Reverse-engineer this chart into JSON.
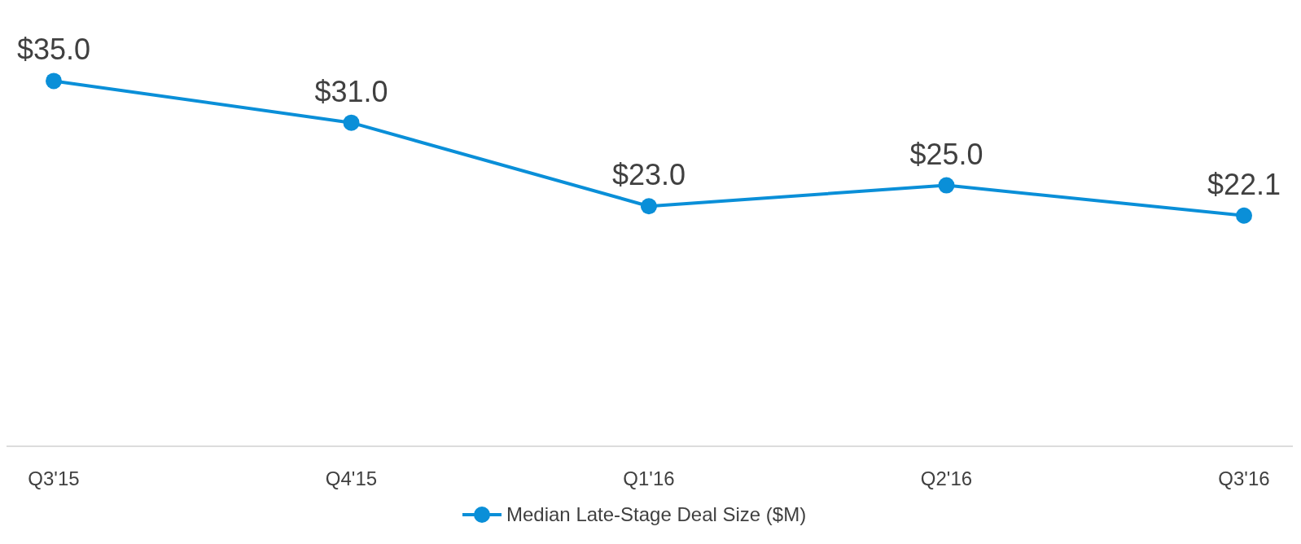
{
  "chart_data": {
    "type": "line",
    "categories": [
      "Q3'15",
      "Q4'15",
      "Q1'16",
      "Q2'16",
      "Q3'16"
    ],
    "series": [
      {
        "name": "Median Late-Stage Deal Size ($M)",
        "color": "#0a8fd8",
        "values": [
          35.0,
          31.0,
          23.0,
          25.0,
          22.1
        ],
        "value_labels": [
          "$35.0",
          "$31.0",
          "$23.0",
          "$25.0",
          "$22.1"
        ]
      }
    ],
    "marker": "circle",
    "line_style": "solid",
    "legend": "bottom"
  }
}
